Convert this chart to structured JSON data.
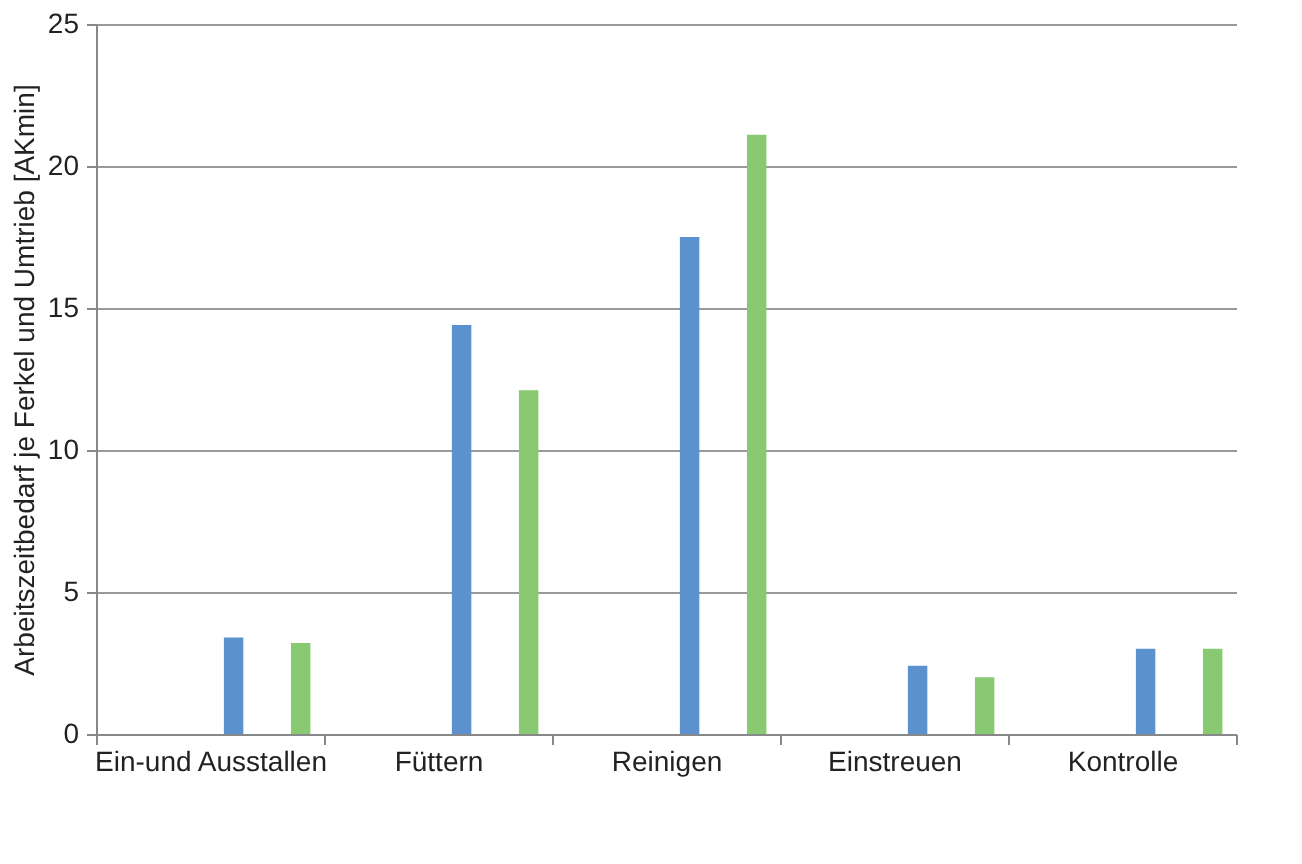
{
  "chart_data": {
    "type": "bar",
    "ylabel": "Arbeitszeitbedarf je Ferkel und Umtrieb [AKmin]",
    "categories": [
      "Ein-und Ausstallen",
      "Füttern",
      "Reinigen",
      "Einstreuen",
      "Kontrolle"
    ],
    "series": [
      {
        "color": "#5b92cd",
        "values": [
          3.4,
          14.4,
          17.5,
          2.4,
          3.0
        ]
      },
      {
        "color": "#89c971",
        "values": [
          3.2,
          12.1,
          21.1,
          2.0,
          3.0
        ]
      }
    ],
    "ylim": [
      0,
      25
    ],
    "yticks": [
      0,
      5,
      10,
      15,
      20,
      25
    ],
    "grid": "y"
  }
}
